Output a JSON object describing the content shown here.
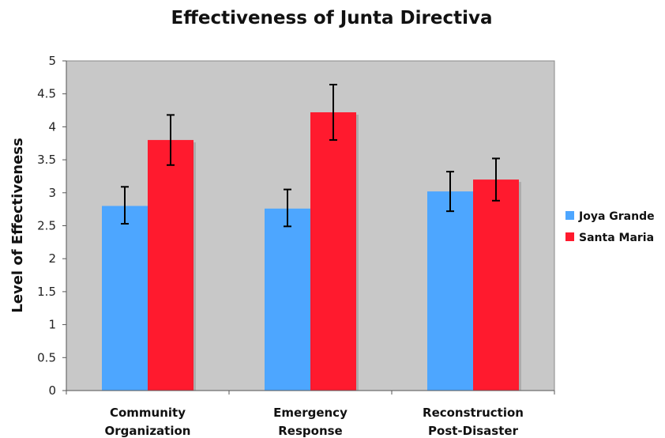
{
  "chart_data": {
    "type": "bar",
    "title": "Effectiveness of Junta Directiva",
    "xlabel": "",
    "ylabel": "Level of Effectiveness",
    "ylim": [
      0,
      5
    ],
    "yticks": [
      "0",
      "0.5",
      "1",
      "1.5",
      "2",
      "2.5",
      "3",
      "3.5",
      "4",
      "4.5",
      "5"
    ],
    "categories": [
      [
        "Community",
        "Organization"
      ],
      [
        "Emergency",
        "Response"
      ],
      [
        "Reconstruction",
        "Post-Disaster"
      ]
    ],
    "series": [
      {
        "name": "Joya Grande",
        "color": "#4DA6FF",
        "values": [
          2.8,
          2.76,
          3.02
        ],
        "error_low": [
          2.53,
          2.49,
          2.72
        ],
        "error_high": [
          3.09,
          3.05,
          3.32
        ]
      },
      {
        "name": "Santa Maria",
        "color": "#FF1A2E",
        "values": [
          3.8,
          4.22,
          3.2
        ],
        "error_low": [
          3.42,
          3.8,
          2.88
        ],
        "error_high": [
          4.18,
          4.64,
          3.52
        ]
      }
    ],
    "grid": false,
    "legend": "right",
    "plot_background": "#C8C8C8"
  }
}
